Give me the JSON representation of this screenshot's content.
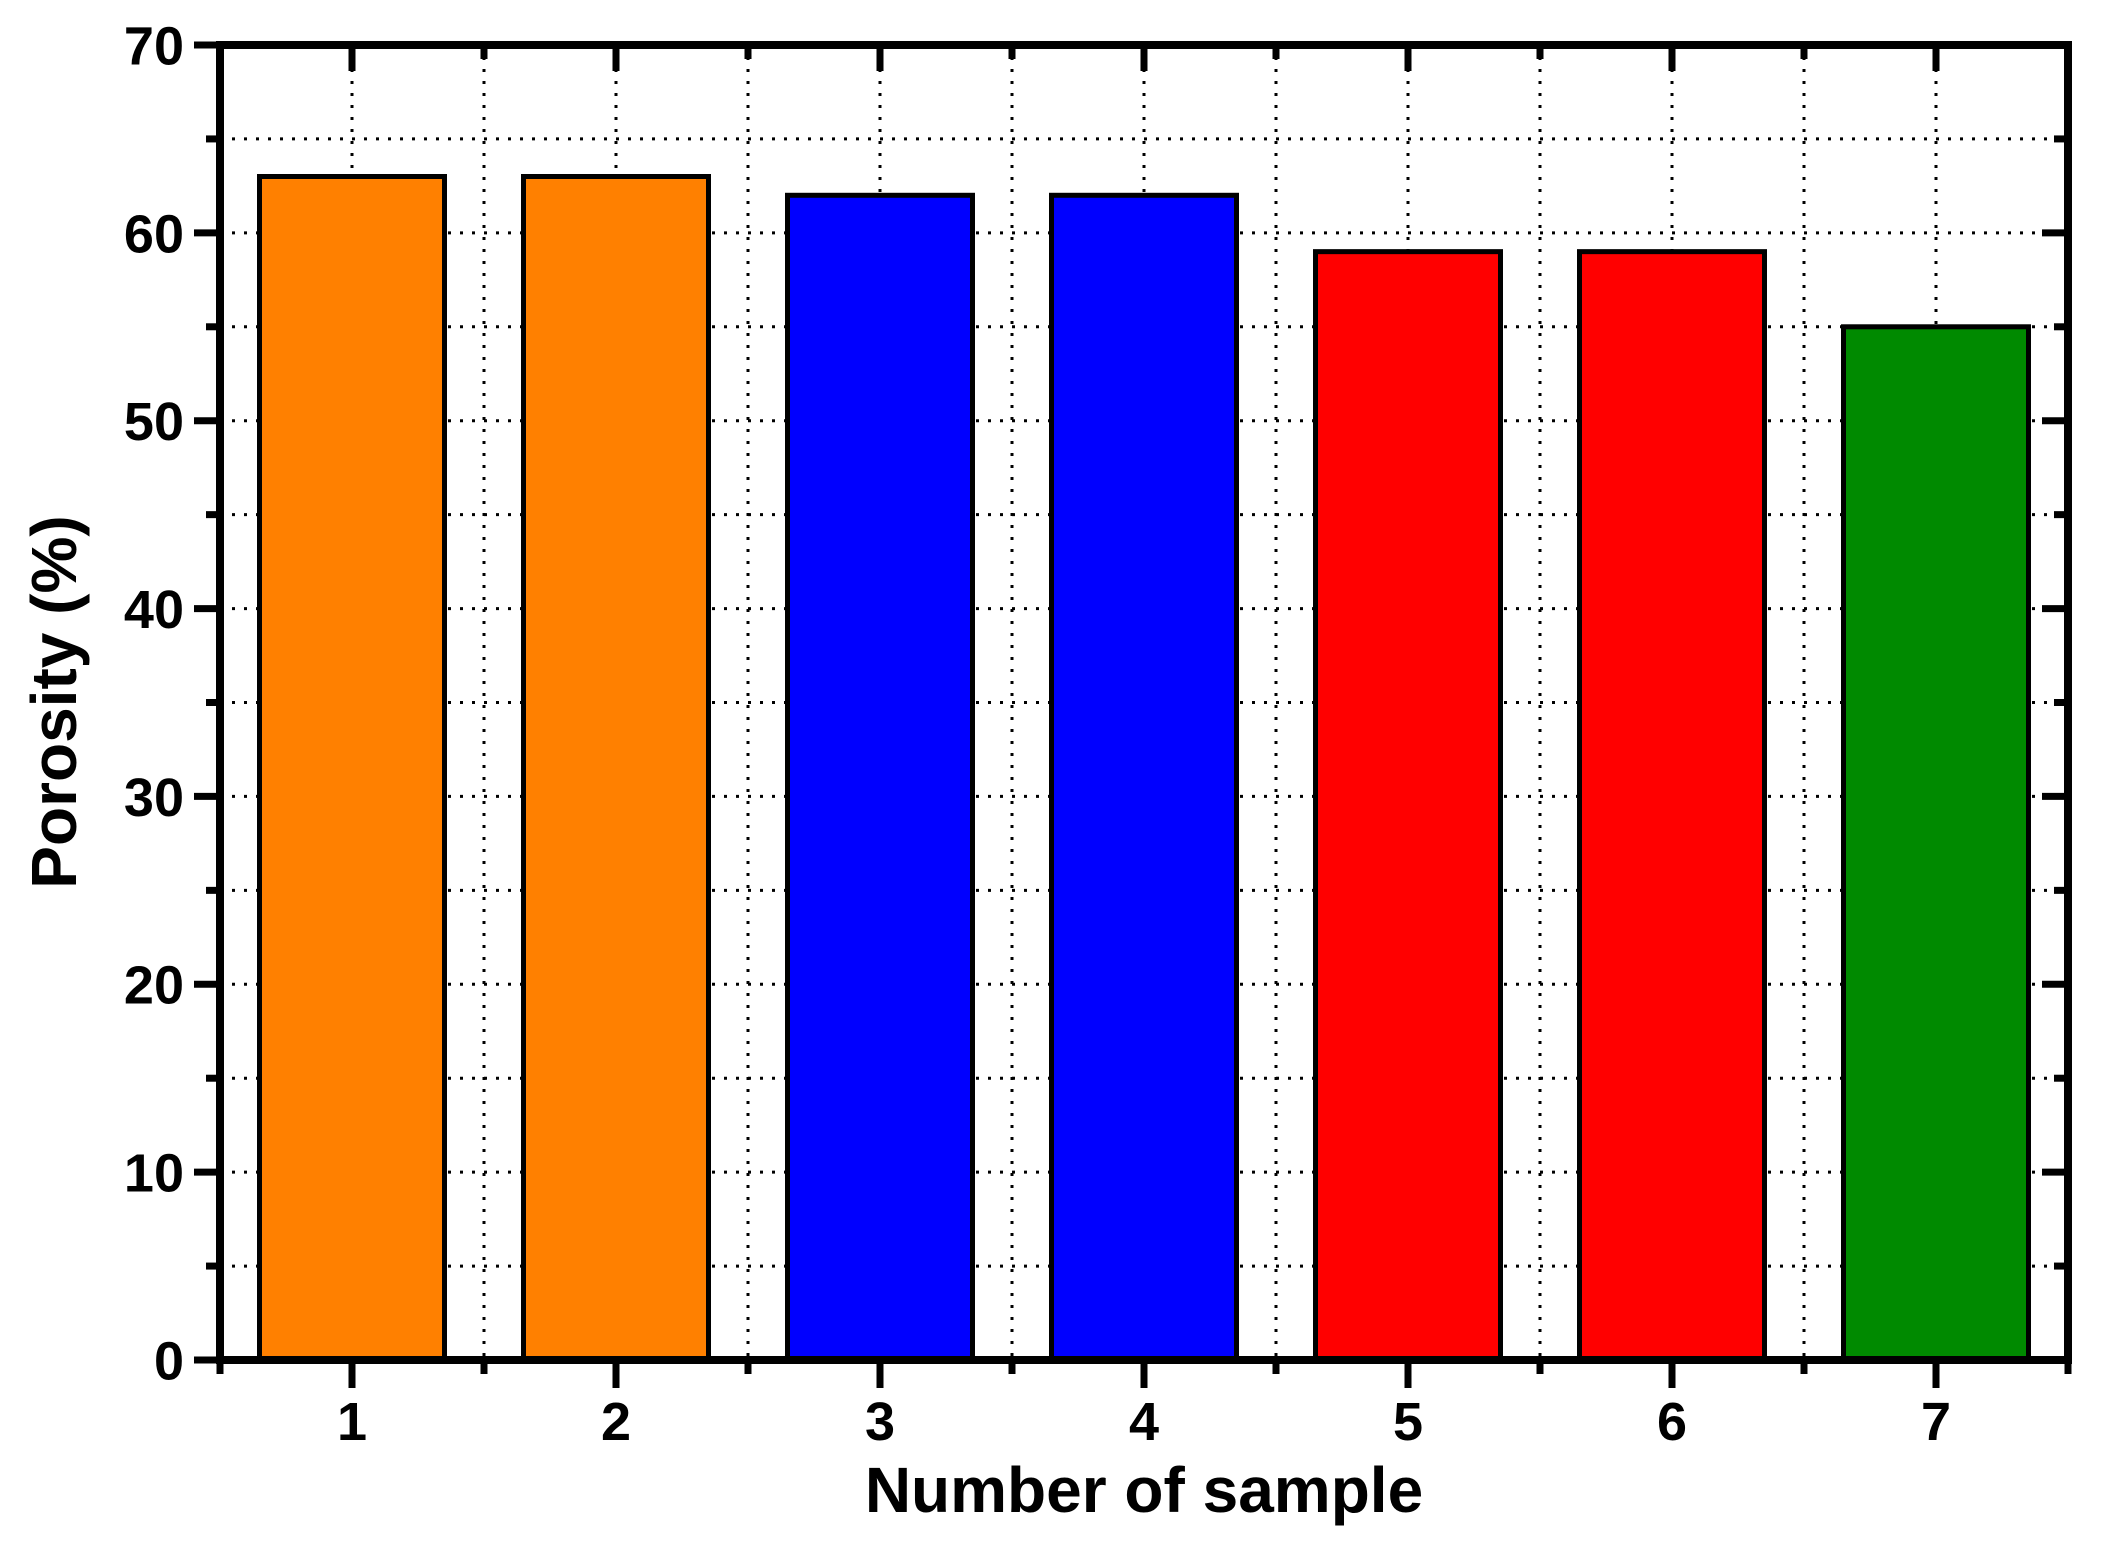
{
  "chart_data": {
    "type": "bar",
    "title": "",
    "xlabel": "Number of sample",
    "ylabel": "Porosity (%)",
    "categories": [
      "1",
      "2",
      "3",
      "4",
      "5",
      "6",
      "7"
    ],
    "values": [
      63,
      63,
      62,
      62,
      59,
      59,
      55
    ],
    "bar_colors": [
      "#FF8000",
      "#FF8000",
      "#0000FF",
      "#0000FF",
      "#FF0000",
      "#FF0000",
      "#008A00"
    ],
    "ylim": [
      0,
      70
    ],
    "yticks_major": [
      0,
      10,
      20,
      30,
      40,
      50,
      60,
      70
    ],
    "yticks_minor": [
      5,
      15,
      25,
      35,
      45,
      55,
      65
    ],
    "grid": "dotted black gridlines at every 5 y-units and every half category step",
    "legend": "none",
    "frame": "full box with inward ticks on top and right, outward ticks on left and bottom",
    "axis_color": "#000000",
    "background_color": "#FFFFFF",
    "bar_edge_color": "#000000"
  }
}
